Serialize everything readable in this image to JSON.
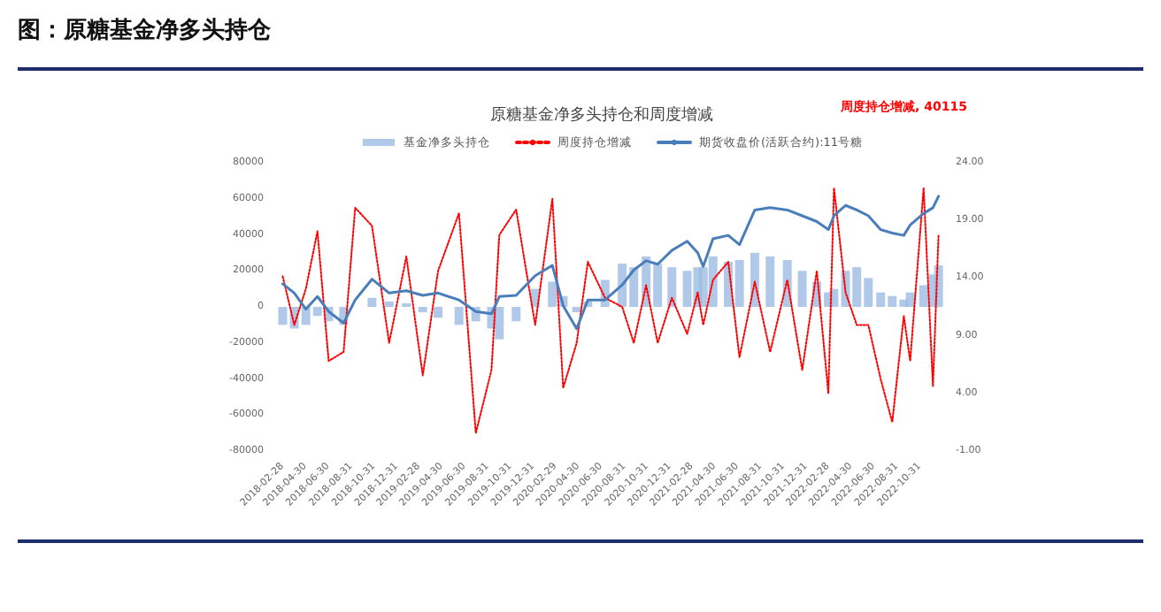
{
  "chart_data": {
    "type": "line",
    "title": "图：原糖基金净多头持仓",
    "subtitle": "原糖基金净多头持仓和周度增减",
    "x": [
      "2018-02-28",
      "2018-03-31",
      "2018-05-01",
      "2018-06-01",
      "2018-07-01",
      "2018-08-10",
      "2018-09-10",
      "2018-10-25",
      "2018-12-10",
      "2019-01-25",
      "2019-03-10",
      "2019-04-20",
      "2019-06-15",
      "2019-07-30",
      "2019-09-10",
      "2019-10-01",
      "2019-11-15",
      "2020-01-05",
      "2020-02-20",
      "2020-03-20",
      "2020-04-25",
      "2020-05-25",
      "2020-07-10",
      "2020-08-25",
      "2020-09-25",
      "2020-10-28",
      "2020-11-28",
      "2021-01-05",
      "2021-02-15",
      "2021-03-15",
      "2021-03-30",
      "2021-04-25",
      "2021-06-05",
      "2021-07-05",
      "2021-08-15",
      "2021-09-25",
      "2021-11-10",
      "2021-12-20",
      "2022-01-28",
      "2022-02-28",
      "2022-03-15",
      "2022-04-15",
      "2022-05-15",
      "2022-06-15",
      "2022-07-18",
      "2022-08-18",
      "2022-09-18",
      "2022-10-05",
      "2022-11-10",
      "2022-12-05",
      "2022-12-20"
    ],
    "series": [
      {
        "name": "基金净多头持仓",
        "type": "bar",
        "color": "#9dbbe3",
        "values": [
          -10000,
          -12000,
          -10000,
          -5000,
          -8000,
          -10000,
          0,
          5000,
          3000,
          2000,
          -3000,
          -6000,
          -10000,
          -8000,
          -12000,
          -18000,
          -8000,
          10000,
          14000,
          6000,
          -3000,
          3000,
          15000,
          24000,
          22000,
          28000,
          24000,
          22000,
          20000,
          22000,
          22000,
          28000,
          25000,
          26000,
          30000,
          28000,
          26000,
          20000,
          14000,
          8000,
          10000,
          20000,
          22000,
          16000,
          8000,
          6000,
          4000,
          8000,
          12000,
          18000,
          23000
        ]
      },
      {
        "name": "周度持仓增减",
        "color": "#ff0000",
        "line_style": "dotted",
        "values": [
          17000,
          -10000,
          10000,
          42000,
          -30000,
          -25000,
          55000,
          45000,
          -20000,
          28000,
          -38000,
          20000,
          52000,
          -70000,
          -35000,
          40000,
          54000,
          -10000,
          60000,
          -45000,
          -20000,
          25000,
          5000,
          0,
          -20000,
          12000,
          -20000,
          5000,
          -15000,
          8000,
          -10000,
          15000,
          25000,
          -28000,
          14000,
          -25000,
          15000,
          -35000,
          20000,
          -48000,
          66000,
          8000,
          -10000,
          -10000,
          -40000,
          -64000,
          -5000,
          -30000,
          66000,
          -44000,
          40115
        ]
      },
      {
        "name": "期货收盘价(活跃合约):11号糖",
        "axis": "y2",
        "color": "#4a7ebb",
        "line_style": "solid",
        "values": [
          13.5,
          12.7,
          11.3,
          12.4,
          11.1,
          10.1,
          12.1,
          13.9,
          12.7,
          12.9,
          12.5,
          12.7,
          12.1,
          11.1,
          10.9,
          12.4,
          12.5,
          14.2,
          15.1,
          11.6,
          9.6,
          12.1,
          12.1,
          13.4,
          14.7,
          15.5,
          15.2,
          16.4,
          17.2,
          16.2,
          15.0,
          17.4,
          17.7,
          16.9,
          19.9,
          20.1,
          19.9,
          19.4,
          18.9,
          18.2,
          19.4,
          20.3,
          19.9,
          19.4,
          18.2,
          17.9,
          17.7,
          18.6,
          19.6,
          20.1,
          21.1
        ]
      }
    ],
    "annotations": [
      "周度持仓增减, 40115"
    ],
    "xlim": [
      "2018-02-15",
      "2022-12-28"
    ],
    "xticks": [
      "2018-02-28",
      "2018-04-30",
      "2018-06-30",
      "2018-08-31",
      "2018-10-31",
      "2018-12-31",
      "2019-02-28",
      "2019-04-30",
      "2019-06-30",
      "2019-08-31",
      "2019-10-31",
      "2019-12-31",
      "2020-02-29",
      "2020-04-30",
      "2020-06-30",
      "2020-08-31",
      "2020-10-31",
      "2020-12-31",
      "2021-02-28",
      "2021-04-30",
      "2021-06-30",
      "2021-08-31",
      "2021-10-31",
      "2021-12-31",
      "2022-02-28",
      "2022-04-30",
      "2022-06-30",
      "2022-08-31",
      "2022-10-31"
    ],
    "ylim": [
      -80000,
      80000
    ],
    "yticks": [
      -80000,
      -60000,
      -40000,
      -20000,
      0,
      20000,
      40000,
      60000,
      80000
    ],
    "y2lim": [
      -1,
      24
    ],
    "y2ticks": [
      {
        "value": -1,
        "label": "-1.00"
      },
      {
        "value": 4,
        "label": "4.00"
      },
      {
        "value": 9,
        "label": "9.00"
      },
      {
        "value": 14,
        "label": "14.00"
      },
      {
        "value": 19,
        "label": "19.00"
      },
      {
        "value": 24,
        "label": "24.00"
      }
    ],
    "legend": "top",
    "grid": false
  }
}
